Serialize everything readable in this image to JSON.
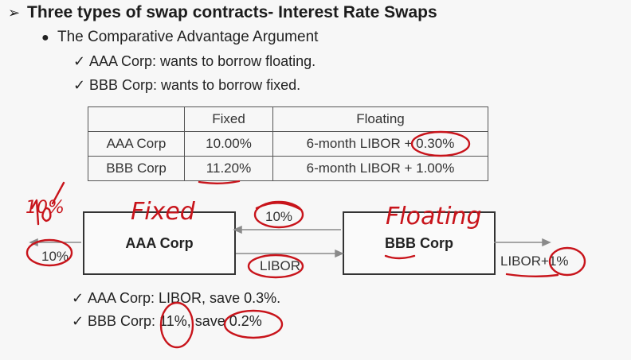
{
  "heading": {
    "arrow": "➢",
    "title": "Three types of swap contracts- Interest Rate Swaps"
  },
  "subheading": {
    "bullet": "●",
    "text": "The Comparative Advantage Argument"
  },
  "tick": "✓",
  "checks_top": [
    "AAA Corp: wants to borrow floating.",
    "BBB Corp: wants to borrow fixed."
  ],
  "table": {
    "headers": [
      "",
      "Fixed",
      "Floating"
    ],
    "rows": [
      [
        "AAA Corp",
        "10.00%",
        "6-month LIBOR + 0.30%"
      ],
      [
        "BBB Corp",
        "11.20%",
        "6-month LIBOR + 1.00%"
      ]
    ]
  },
  "diagram": {
    "box_left": "AAA Corp",
    "box_right": "BBB Corp",
    "flow_top": "10%",
    "flow_bottom": "LIBOR",
    "left_out": "10%",
    "right_out": "LIBOR+1%"
  },
  "checks_bottom": [
    "AAA Corp: LIBOR, save 0.3%.",
    "BBB Corp: 11%, save 0.2%"
  ],
  "annotations": {
    "fixed": "Fixed",
    "floating": "Floating",
    "ten_pct": "10%",
    "color": "#c8141b"
  }
}
